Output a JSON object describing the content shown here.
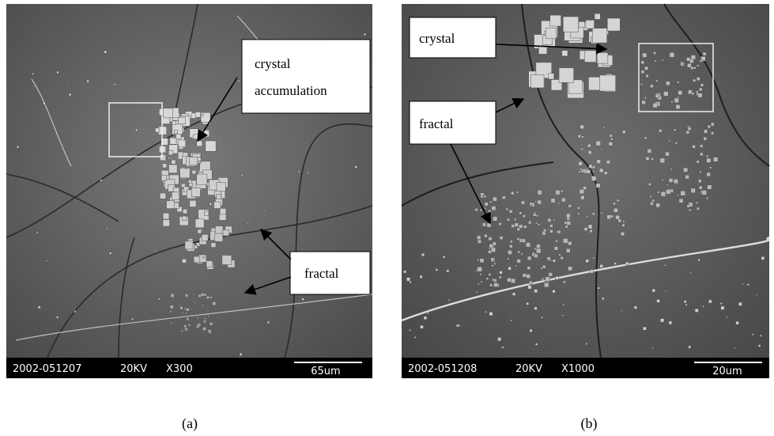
{
  "panels": [
    {
      "caption": "(a)",
      "labels": [
        {
          "lines": [
            "crystal",
            "accumulation"
          ]
        },
        {
          "lines": [
            "fractal"
          ]
        }
      ],
      "info_bar": {
        "id": "2002-051207",
        "voltage": "20KV",
        "magnification": "X300",
        "scale": "65um"
      }
    },
    {
      "caption": "(b)",
      "labels": [
        {
          "lines": [
            "crystal"
          ]
        },
        {
          "lines": [
            "fractal"
          ]
        }
      ],
      "info_bar": {
        "id": "2002-051208",
        "voltage": "20KV",
        "magnification": "X1000",
        "scale": "20um"
      }
    }
  ]
}
